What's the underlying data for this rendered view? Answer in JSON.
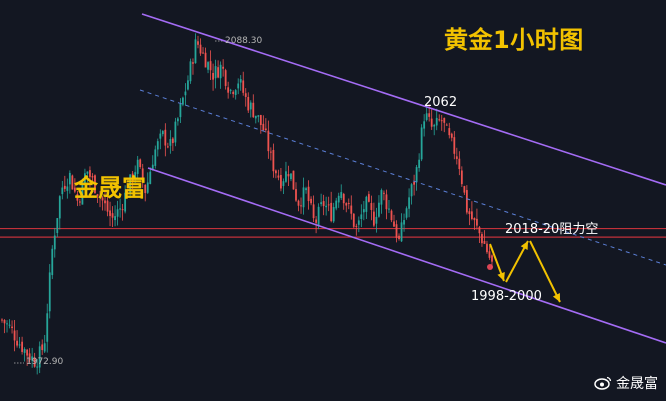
{
  "title": "黄金1小时图",
  "brand": "金晟富",
  "watermark": {
    "icon": "weibo-icon",
    "text": "金晟富"
  },
  "annotations": {
    "high_label": "2088.30",
    "low_label": "1972.90",
    "peak": "2062",
    "resistance": "2018-20阻力空",
    "support": "1998-2000"
  },
  "colors": {
    "background": "#131722",
    "up": "#26a69a",
    "down": "#ef5350",
    "channel": "#a46cf5",
    "midline": "#5b7fd6",
    "resistance_zone": "#c2313a",
    "arrow": "#f2c200",
    "title": "#f2c200"
  },
  "chart_data": {
    "type": "candlestick",
    "title": "黄金1小时图",
    "xlabel": "",
    "ylabel": "",
    "ylim": [
      1960,
      2110
    ],
    "key_levels": {
      "high": 2088.3,
      "low": 1972.9,
      "peak": 2062
    },
    "resistance_zone": [
      2018,
      2020
    ],
    "support_zone": [
      1998,
      2000
    ],
    "projection": [
      2008,
      2019,
      1995
    ],
    "price_path": [
      1988,
      1985,
      1980,
      1976,
      1973,
      1979,
      2015,
      2035,
      2040,
      2030,
      2042,
      2036,
      2030,
      2024,
      2028,
      2036,
      2044,
      2034,
      2048,
      2054,
      2050,
      2062,
      2074,
      2088,
      2082,
      2076,
      2079,
      2070,
      2074,
      2066,
      2062,
      2056,
      2044,
      2038,
      2042,
      2030,
      2034,
      2022,
      2030,
      2026,
      2036,
      2028,
      2020,
      2030,
      2024,
      2034,
      2026,
      2016,
      2030,
      2040,
      2062,
      2056,
      2060,
      2052,
      2046,
      2028,
      2022,
      2016,
      2008
    ]
  }
}
